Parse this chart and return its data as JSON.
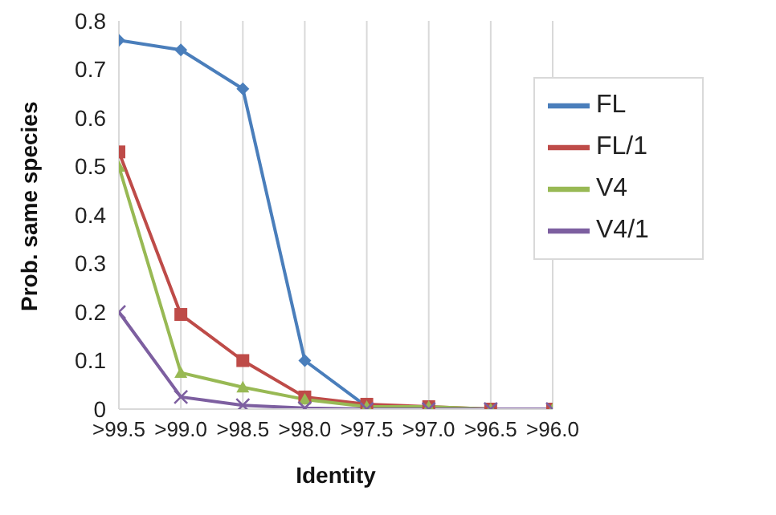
{
  "chart_data": {
    "type": "line",
    "xlabel": "Identity",
    "ylabel": "Prob. same species",
    "categories": [
      ">99.5",
      ">99.0",
      ">98.5",
      ">98.0",
      ">97.5",
      ">97.0",
      ">96.5",
      ">96.0"
    ],
    "series": [
      {
        "name": "FL",
        "color": "#4a7ebb",
        "marker": "diamond",
        "values": [
          0.76,
          0.74,
          0.66,
          0.1,
          0.005,
          0,
          null,
          null
        ]
      },
      {
        "name": "FL/1",
        "color": "#be4b48",
        "marker": "square",
        "values": [
          0.53,
          0.195,
          0.1,
          0.025,
          0.01,
          0.005,
          0,
          0
        ]
      },
      {
        "name": "V4",
        "color": "#98b954",
        "marker": "triangle",
        "values": [
          0.5,
          0.075,
          0.045,
          0.02,
          0.005,
          0.005,
          0,
          0
        ]
      },
      {
        "name": "V4/1",
        "color": "#7d5fa0",
        "marker": "cross",
        "values": [
          0.2,
          0.025,
          0.008,
          0.002,
          0,
          0,
          0,
          0
        ]
      }
    ],
    "ylim": [
      0,
      0.8
    ],
    "yticks": [
      0,
      0.1,
      0.2,
      0.3,
      0.4,
      0.5,
      0.6,
      0.7,
      0.8
    ],
    "grid": "x",
    "legend": "top right",
    "line_style": "solid"
  }
}
